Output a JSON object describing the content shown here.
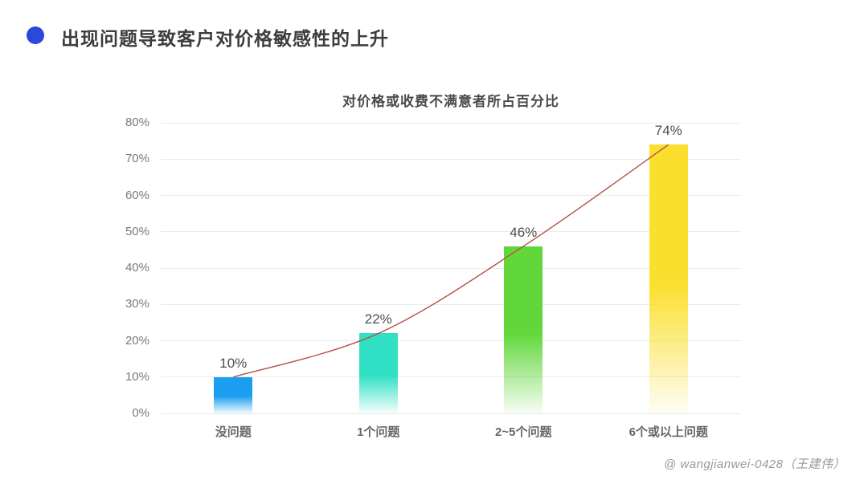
{
  "header": {
    "bullet_color": "#2b48d8",
    "title": "出现问题导致客户对价格敏感性的上升"
  },
  "watermark": "@ wangjianwei-0428（王建伟）",
  "chart_data": {
    "type": "bar",
    "title": "对价格或收费不满意者所占百分比",
    "categories": [
      "没问题",
      "1个问题",
      "2~5个问题",
      "6个或以上问题"
    ],
    "values": [
      10,
      22,
      46,
      74
    ],
    "value_labels": [
      "10%",
      "22%",
      "46%",
      "74%"
    ],
    "y_tick_labels": [
      "0%",
      "10%",
      "20%",
      "30%",
      "40%",
      "50%",
      "60%",
      "70%",
      "80%"
    ],
    "ylim": [
      0,
      80
    ],
    "y_tick_step": 10,
    "xlabel": "",
    "ylabel": "",
    "grid": "horizontal",
    "legend": "none",
    "bar_colors": [
      "#1b9ef0",
      "#2fe0c4",
      "#61d73a",
      "#fbdf2e"
    ],
    "trend_line": {
      "type": "smooth-curve-through-bar-tops",
      "color": "#b5524b",
      "x": [
        0,
        1,
        2,
        3
      ],
      "y": [
        10,
        22,
        46,
        74
      ]
    },
    "style_colors": {
      "grid": "#eaeaea",
      "axis_text": "#7a7a7a",
      "value_text": "#4d4d4d",
      "title_text": "#4a4a4a"
    }
  }
}
